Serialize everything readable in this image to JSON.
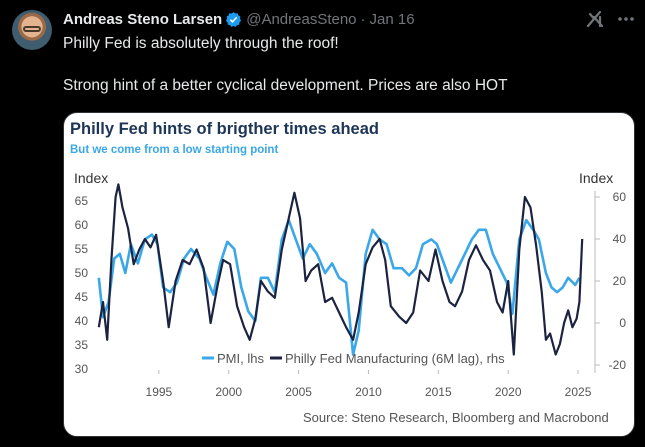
{
  "tweet": {
    "author_name": "Andreas Steno Larsen",
    "handle": "@AndreasSteno",
    "separator": "·",
    "date": "Jan 16",
    "line1": "Philly Fed is absolutely through the roof!",
    "line2": "Strong hint of a better cyclical development. Prices are also HOT",
    "icons": {
      "avatar": "profile-photo",
      "verified": "verified-badge-icon",
      "grok": "grok-icon",
      "more": "more-icon"
    },
    "colors": {
      "verified": "#1d9bf0",
      "muted": "#71767b"
    }
  },
  "chart_data": {
    "type": "line",
    "title": "Philly Fed hints of brigther times ahead",
    "subtitle": "But we come from a low starting point",
    "y_left_label": "Index",
    "y_right_label": "Index",
    "y_left_ticks": [
      65,
      60,
      55,
      50,
      45,
      40,
      35,
      30
    ],
    "y_right_ticks": [
      60,
      40,
      20,
      0,
      -20
    ],
    "ylim_left": [
      30,
      65
    ],
    "ylim_right": [
      -20,
      70
    ],
    "x_ticks": [
      "1995",
      "2000",
      "2005",
      "2010",
      "2015",
      "2020",
      "2025"
    ],
    "xlim": [
      1990.5,
      2026
    ],
    "source": "Source: Steno Research, Bloomberg and Macrobond",
    "series": [
      {
        "name": "PMI, lhs",
        "axis": "left",
        "color": "#3aa8e8",
        "points": [
          [
            1990.7,
            49
          ],
          [
            1991.0,
            40.8
          ],
          [
            1991.4,
            44
          ],
          [
            1991.8,
            53
          ],
          [
            1992.2,
            54
          ],
          [
            1992.6,
            50
          ],
          [
            1993.0,
            56
          ],
          [
            1993.5,
            52
          ],
          [
            1994.0,
            57
          ],
          [
            1994.5,
            58
          ],
          [
            1994.9,
            56
          ],
          [
            1995.3,
            47
          ],
          [
            1995.8,
            46
          ],
          [
            1996.3,
            48
          ],
          [
            1996.8,
            53
          ],
          [
            1997.3,
            55
          ],
          [
            1997.9,
            53
          ],
          [
            1998.4,
            49
          ],
          [
            1998.9,
            45.5
          ],
          [
            1999.4,
            52
          ],
          [
            1999.9,
            56.5
          ],
          [
            2000.4,
            55
          ],
          [
            2000.9,
            47
          ],
          [
            2001.4,
            42
          ],
          [
            2001.9,
            40
          ],
          [
            2002.3,
            49
          ],
          [
            2002.8,
            49
          ],
          [
            2003.3,
            46
          ],
          [
            2003.8,
            57
          ],
          [
            2004.3,
            61
          ],
          [
            2004.8,
            57
          ],
          [
            2005.3,
            53
          ],
          [
            2005.8,
            56
          ],
          [
            2006.3,
            54
          ],
          [
            2006.9,
            50
          ],
          [
            2007.4,
            52
          ],
          [
            2007.9,
            49
          ],
          [
            2008.4,
            48
          ],
          [
            2008.9,
            33
          ],
          [
            2009.3,
            38
          ],
          [
            2009.8,
            54
          ],
          [
            2010.3,
            59
          ],
          [
            2010.8,
            57
          ],
          [
            2011.3,
            56
          ],
          [
            2011.8,
            51
          ],
          [
            2012.4,
            51
          ],
          [
            2012.9,
            49.5
          ],
          [
            2013.4,
            51
          ],
          [
            2013.9,
            56
          ],
          [
            2014.5,
            57
          ],
          [
            2014.9,
            56
          ],
          [
            2015.4,
            52
          ],
          [
            2015.9,
            48
          ],
          [
            2016.4,
            51
          ],
          [
            2016.9,
            54
          ],
          [
            2017.4,
            57
          ],
          [
            2017.9,
            59
          ],
          [
            2018.4,
            59
          ],
          [
            2018.9,
            54
          ],
          [
            2019.4,
            51
          ],
          [
            2019.9,
            48
          ],
          [
            2020.3,
            41.5
          ],
          [
            2020.8,
            57
          ],
          [
            2021.3,
            61
          ],
          [
            2021.8,
            59
          ],
          [
            2022.2,
            57
          ],
          [
            2022.7,
            50
          ],
          [
            2023.1,
            47
          ],
          [
            2023.5,
            46
          ],
          [
            2023.9,
            47
          ],
          [
            2024.3,
            49
          ],
          [
            2024.8,
            47.5
          ],
          [
            2025.1,
            49
          ]
        ]
      },
      {
        "name": "Philly Fed Manufacturing (6M lag), rhs",
        "axis": "right",
        "color": "#1c2340",
        "points": [
          [
            1990.7,
            -2
          ],
          [
            1991.0,
            10
          ],
          [
            1991.3,
            -8
          ],
          [
            1991.6,
            30
          ],
          [
            1991.9,
            60
          ],
          [
            1992.1,
            66
          ],
          [
            1992.4,
            55
          ],
          [
            1992.8,
            45
          ],
          [
            1993.2,
            28
          ],
          [
            1993.6,
            35
          ],
          [
            1994.0,
            40
          ],
          [
            1994.4,
            36
          ],
          [
            1994.8,
            42
          ],
          [
            1995.3,
            20
          ],
          [
            1995.7,
            -2
          ],
          [
            1996.2,
            20
          ],
          [
            1996.7,
            30
          ],
          [
            1997.2,
            28
          ],
          [
            1997.7,
            35
          ],
          [
            1998.2,
            26
          ],
          [
            1998.7,
            0
          ],
          [
            1999.2,
            18
          ],
          [
            1999.6,
            30
          ],
          [
            2000.1,
            28
          ],
          [
            2000.6,
            8
          ],
          [
            2001.1,
            -2
          ],
          [
            2001.5,
            -8
          ],
          [
            2001.9,
            2
          ],
          [
            2002.3,
            20
          ],
          [
            2002.8,
            15
          ],
          [
            2003.3,
            12
          ],
          [
            2003.8,
            35
          ],
          [
            2004.3,
            50
          ],
          [
            2004.7,
            62
          ],
          [
            2005.1,
            50
          ],
          [
            2005.5,
            20
          ],
          [
            2005.9,
            25
          ],
          [
            2006.4,
            28
          ],
          [
            2006.9,
            10
          ],
          [
            2007.4,
            12
          ],
          [
            2007.9,
            5
          ],
          [
            2008.4,
            -2
          ],
          [
            2008.9,
            -8
          ],
          [
            2009.3,
            5
          ],
          [
            2009.8,
            28
          ],
          [
            2010.3,
            36
          ],
          [
            2010.8,
            40
          ],
          [
            2011.2,
            30
          ],
          [
            2011.6,
            8
          ],
          [
            2012.2,
            3
          ],
          [
            2012.7,
            0
          ],
          [
            2013.2,
            5
          ],
          [
            2013.7,
            25
          ],
          [
            2014.3,
            20
          ],
          [
            2014.8,
            35
          ],
          [
            2015.3,
            20
          ],
          [
            2015.8,
            10
          ],
          [
            2016.2,
            8
          ],
          [
            2016.7,
            15
          ],
          [
            2017.2,
            30
          ],
          [
            2017.7,
            37
          ],
          [
            2018.2,
            30
          ],
          [
            2018.7,
            25
          ],
          [
            2019.2,
            10
          ],
          [
            2019.6,
            5
          ],
          [
            2020.0,
            20
          ],
          [
            2020.4,
            -15
          ],
          [
            2020.8,
            35
          ],
          [
            2021.2,
            60
          ],
          [
            2021.6,
            55
          ],
          [
            2022.0,
            37
          ],
          [
            2022.4,
            15
          ],
          [
            2022.7,
            -8
          ],
          [
            2023.0,
            -5
          ],
          [
            2023.4,
            -15
          ],
          [
            2023.7,
            -10
          ],
          [
            2024.0,
            0
          ],
          [
            2024.3,
            6
          ],
          [
            2024.6,
            -2
          ],
          [
            2024.9,
            2
          ],
          [
            2025.1,
            10
          ],
          [
            2025.3,
            40
          ]
        ]
      }
    ],
    "legend_position": "bottom-center",
    "grid": false
  }
}
